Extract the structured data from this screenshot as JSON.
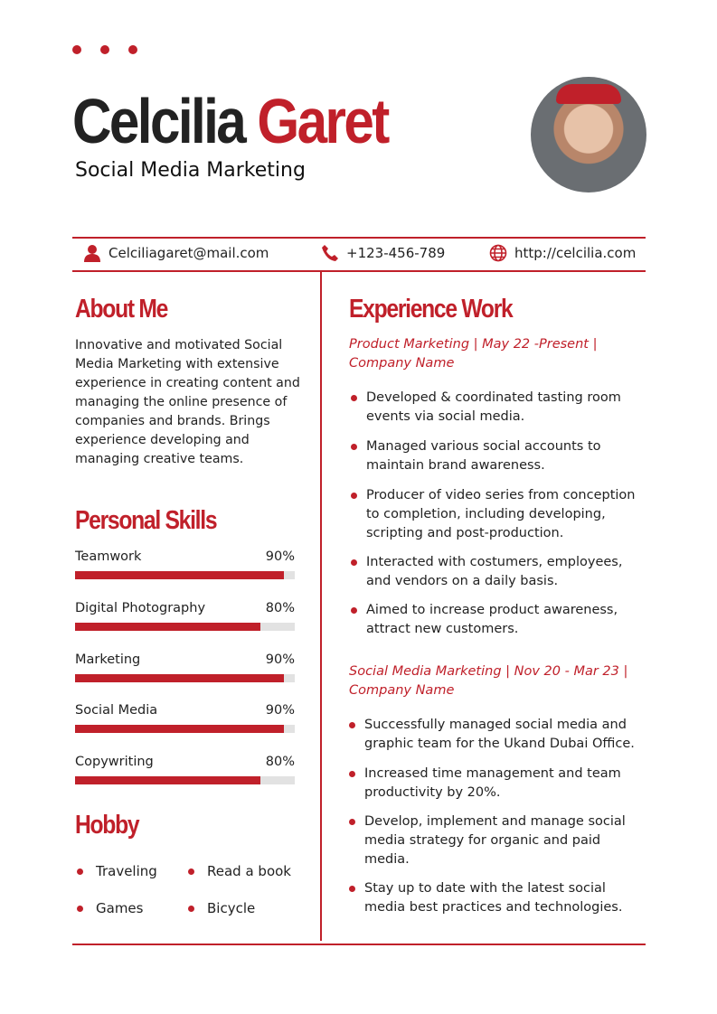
{
  "header": {
    "first_name": "Celcilia",
    "last_name": "Garet",
    "role": "Social Media Marketing"
  },
  "contact": {
    "email": "Celciliagaret@mail.com",
    "phone": "+123-456-789",
    "website": "http://celcilia.com"
  },
  "about": {
    "title": "About Me",
    "text": "Innovative and motivated Social Media Marketing with extensive experience in creating content and managing the online presence of companies and brands. Brings experience developing and managing creative teams."
  },
  "skills": {
    "title": "Personal Skills",
    "items": [
      {
        "name": "Teamwork",
        "label": "90%",
        "value": 90
      },
      {
        "name": "Digital Photography",
        "label": "80%",
        "value": 80
      },
      {
        "name": "Marketing",
        "label": "90%",
        "value": 90
      },
      {
        "name": "Social Media",
        "label": "90%",
        "value": 90
      },
      {
        "name": "Copywriting",
        "label": "80%",
        "value": 80
      }
    ]
  },
  "hobby": {
    "title": "Hobby",
    "items": [
      "Traveling",
      "Read a book",
      "Games",
      "Bicycle"
    ]
  },
  "experience": {
    "title": "Experience Work",
    "jobs": [
      {
        "heading": "Product Marketing | May 22 -Present | Company Name",
        "bullets": [
          "Developed & coordinated tasting room events via social media.",
          "Managed various social accounts to maintain brand awareness.",
          "Producer of video series from conception to completion, including developing, scripting and post-production.",
          "Interacted with costumers, employees, and vendors on a daily basis.",
          "Aimed to increase product awareness, attract new customers."
        ]
      },
      {
        "heading": "Social Media Marketing | Nov 20 - Mar 23 | Company Name",
        "bullets": [
          "Successfully managed social media and graphic team for the Ukand Dubai Office.",
          "Increased time management and team productivity by 20%.",
          "Develop, implement and manage social media strategy for organic and paid media.",
          "Stay up to date with the latest social media best practices and technologies."
        ]
      }
    ]
  },
  "colors": {
    "accent": "#c0202a"
  }
}
